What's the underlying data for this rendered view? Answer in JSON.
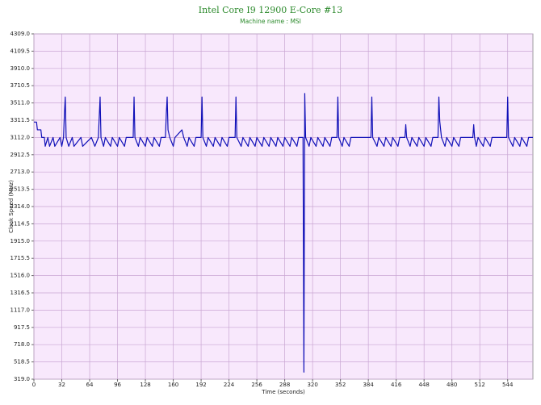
{
  "chart_data": {
    "type": "line",
    "title": "Intel Core I9 12900 E-Core #13",
    "subtitle": "Machine name : MSI",
    "xlabel": "Time (seconds)",
    "ylabel": "Clock Speed (MHz)",
    "grid": true,
    "xlim": [
      0,
      573
    ],
    "ylim": [
      319.0,
      4309.0
    ],
    "xticks": [
      0,
      32,
      64,
      96,
      128,
      160,
      192,
      224,
      256,
      288,
      320,
      352,
      384,
      416,
      448,
      480,
      512,
      544
    ],
    "yticks": [
      {
        "value": 319,
        "label": "319.0"
      },
      {
        "value": 518.5,
        "label": "518.5"
      },
      {
        "value": 718,
        "label": "718.0"
      },
      {
        "value": 917.5,
        "label": "917.5"
      },
      {
        "value": 1117,
        "label": "1117.0"
      },
      {
        "value": 1316.5,
        "label": "1316.5"
      },
      {
        "value": 1516,
        "label": "1516.0"
      },
      {
        "value": 1715.5,
        "label": "1715.5"
      },
      {
        "value": 1915,
        "label": "1915.0"
      },
      {
        "value": 2114.5,
        "label": "2114.5"
      },
      {
        "value": 2314,
        "label": "2314.0"
      },
      {
        "value": 2513.5,
        "label": "2513.5"
      },
      {
        "value": 2713,
        "label": "2713.0"
      },
      {
        "value": 2912.5,
        "label": "2912.5"
      },
      {
        "value": 3112,
        "label": "3112.0"
      },
      {
        "value": 3311.5,
        "label": "3311.5"
      },
      {
        "value": 3511,
        "label": "3511.0"
      },
      {
        "value": 3710.5,
        "label": "3710.5"
      },
      {
        "value": 3910,
        "label": "3910.0"
      },
      {
        "value": 4109.5,
        "label": "4109.5"
      },
      {
        "value": 4309,
        "label": "4309.0"
      }
    ],
    "x": [
      0,
      3,
      4,
      8,
      9,
      12,
      13,
      16,
      18,
      22,
      24,
      30,
      32,
      34,
      35,
      36,
      37,
      40,
      44,
      46,
      54,
      56,
      66,
      70,
      74,
      76,
      77,
      80,
      82,
      88,
      90,
      96,
      98,
      104,
      106,
      114,
      115,
      116,
      120,
      122,
      128,
      130,
      136,
      138,
      144,
      146,
      151,
      152,
      153,
      154,
      156,
      160,
      162,
      170,
      172,
      176,
      178,
      184,
      186,
      192,
      193,
      194,
      198,
      200,
      206,
      208,
      214,
      216,
      222,
      224,
      231,
      232,
      233,
      238,
      240,
      246,
      248,
      254,
      256,
      262,
      264,
      270,
      272,
      278,
      280,
      286,
      288,
      294,
      296,
      302,
      304,
      309,
      310,
      311,
      312,
      316,
      318,
      324,
      326,
      332,
      334,
      340,
      342,
      348,
      349,
      350,
      354,
      356,
      362,
      364,
      387,
      388,
      389,
      394,
      396,
      402,
      404,
      410,
      412,
      418,
      420,
      426,
      427,
      428,
      432,
      434,
      440,
      442,
      448,
      450,
      456,
      458,
      464,
      465,
      466,
      468,
      472,
      474,
      480,
      482,
      488,
      490,
      504,
      505,
      506,
      508,
      510,
      516,
      518,
      524,
      526,
      543,
      544,
      545,
      550,
      552,
      558,
      560,
      566,
      568,
      573
    ],
    "series": [
      {
        "name": "Clock Speed",
        "color": "#1010b8",
        "values": [
          3290,
          3290,
          3200,
          3200,
          3112,
          3112,
          3010,
          3112,
          3010,
          3112,
          3010,
          3112,
          3010,
          3112,
          3380,
          3580,
          3112,
          3010,
          3112,
          3010,
          3112,
          3010,
          3112,
          3010,
          3112,
          3580,
          3112,
          3010,
          3112,
          3010,
          3112,
          3010,
          3112,
          3010,
          3112,
          3112,
          3580,
          3112,
          3010,
          3112,
          3010,
          3112,
          3010,
          3112,
          3010,
          3112,
          3112,
          3380,
          3580,
          3200,
          3112,
          3010,
          3112,
          3200,
          3112,
          3010,
          3112,
          3010,
          3112,
          3112,
          3580,
          3112,
          3010,
          3112,
          3010,
          3112,
          3010,
          3112,
          3010,
          3112,
          3112,
          3580,
          3112,
          3010,
          3112,
          3010,
          3112,
          3010,
          3112,
          3010,
          3112,
          3010,
          3112,
          3010,
          3112,
          3010,
          3112,
          3010,
          3112,
          3010,
          3112,
          3112,
          400,
          3620,
          3112,
          3010,
          3112,
          3010,
          3112,
          3010,
          3112,
          3010,
          3112,
          3112,
          3580,
          3112,
          3010,
          3112,
          3010,
          3112,
          3112,
          3580,
          3112,
          3010,
          3112,
          3010,
          3112,
          3010,
          3112,
          3010,
          3112,
          3112,
          3260,
          3112,
          3010,
          3112,
          3010,
          3112,
          3010,
          3112,
          3010,
          3112,
          3112,
          3580,
          3300,
          3112,
          3010,
          3112,
          3010,
          3112,
          3010,
          3112,
          3112,
          3260,
          3112,
          3010,
          3112,
          3010,
          3112,
          3010,
          3112,
          3112,
          3580,
          3112,
          3010,
          3112,
          3010,
          3112,
          3010,
          3112,
          3112
        ]
      }
    ]
  }
}
